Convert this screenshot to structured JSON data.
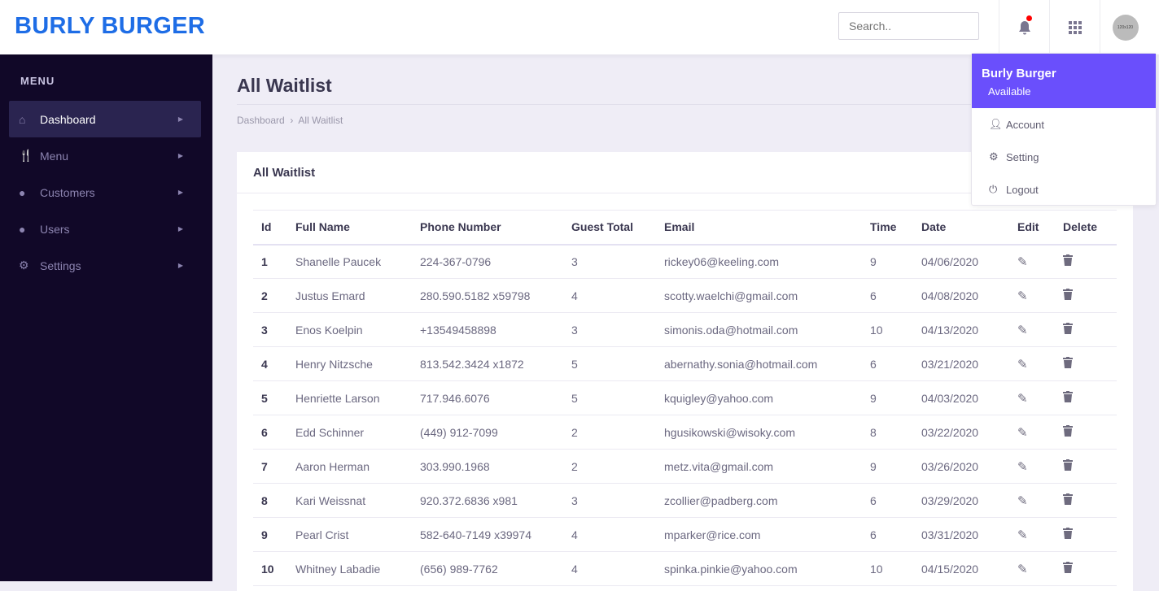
{
  "header": {
    "logo": "BURLY BURGER",
    "search_placeholder": "Search..",
    "avatar_text": "120x120"
  },
  "colors": {
    "brand": "#1e6de6",
    "accent": "#6a4ffc",
    "sidebar": "#110828",
    "notification": "#ff0000"
  },
  "sidebar": {
    "title": "MENU",
    "items": [
      {
        "label": "Dashboard",
        "icon": "home-icon",
        "active": true
      },
      {
        "label": "Menu",
        "icon": "utensils-icon"
      },
      {
        "label": "Customers",
        "icon": "user-circle-icon"
      },
      {
        "label": "Users",
        "icon": "user-circle-icon"
      },
      {
        "label": "Settings",
        "icon": "cogs-icon"
      }
    ]
  },
  "page": {
    "title": "All Waitlist",
    "breadcrumb": [
      "Dashboard",
      "All Waitlist"
    ]
  },
  "card": {
    "title": "All Waitlist"
  },
  "table": {
    "columns": [
      "Id",
      "Full Name",
      "Phone Number",
      "Guest Total",
      "Email",
      "Time",
      "Date",
      "Edit",
      "Delete"
    ],
    "rows": [
      [
        "1",
        "Shanelle Paucek",
        "224-367-0796",
        "3",
        "rickey06@keeling.com",
        "9",
        "04/06/2020"
      ],
      [
        "2",
        "Justus Emard",
        "280.590.5182 x59798",
        "4",
        "scotty.waelchi@gmail.com",
        "6",
        "04/08/2020"
      ],
      [
        "3",
        "Enos Koelpin",
        "+13549458898",
        "3",
        "simonis.oda@hotmail.com",
        "10",
        "04/13/2020"
      ],
      [
        "4",
        "Henry Nitzsche",
        "813.542.3424 x1872",
        "5",
        "abernathy.sonia@hotmail.com",
        "6",
        "03/21/2020"
      ],
      [
        "5",
        "Henriette Larson",
        "717.946.6076",
        "5",
        "kquigley@yahoo.com",
        "9",
        "04/03/2020"
      ],
      [
        "6",
        "Edd Schinner",
        "(449) 912-7099",
        "2",
        "hgusikowski@wisoky.com",
        "8",
        "03/22/2020"
      ],
      [
        "7",
        "Aaron Herman",
        "303.990.1968",
        "2",
        "metz.vita@gmail.com",
        "9",
        "03/26/2020"
      ],
      [
        "8",
        "Kari Weissnat",
        "920.372.6836 x981",
        "3",
        "zcollier@padberg.com",
        "6",
        "03/29/2020"
      ],
      [
        "9",
        "Pearl Crist",
        "582-640-7149 x39974",
        "4",
        "mparker@rice.com",
        "6",
        "03/31/2020"
      ],
      [
        "10",
        "Whitney Labadie",
        "(656) 989-7762",
        "4",
        "spinka.pinkie@yahoo.com",
        "10",
        "04/15/2020"
      ]
    ]
  },
  "dropdown": {
    "name": "Burly Burger",
    "status": "Available",
    "items": [
      {
        "label": "Account",
        "icon": "user-icon"
      },
      {
        "label": "Setting",
        "icon": "gear-icon"
      },
      {
        "label": "Logout",
        "icon": "power-icon"
      }
    ]
  }
}
